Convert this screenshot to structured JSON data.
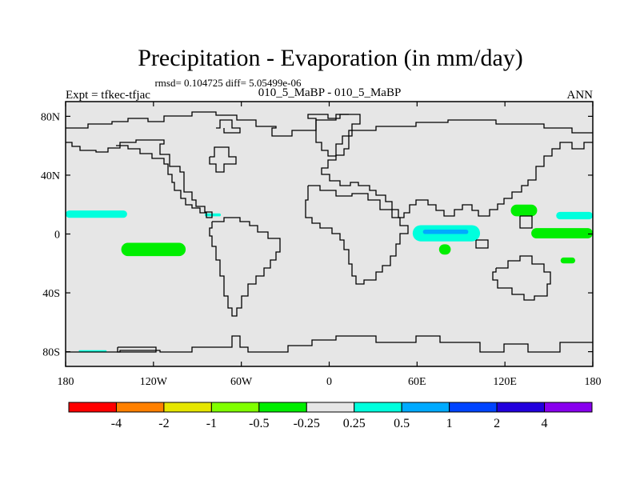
{
  "chart_data": {
    "type": "heatmap",
    "title": "Precipitation - Evaporation (in mm/day)",
    "stats_text": "rmsd= 0.104725 diff= 5.05499e-06",
    "left_label": "Expt = tfkec-tfjac",
    "center_label": "010_5_MaBP - 010_5_MaBP",
    "right_label": "ANN",
    "x_ticks": [
      {
        "value": -180,
        "label": "180"
      },
      {
        "value": -120,
        "label": "120W"
      },
      {
        "value": -60,
        "label": "60W"
      },
      {
        "value": 0,
        "label": "0"
      },
      {
        "value": 60,
        "label": "60E"
      },
      {
        "value": 120,
        "label": "120E"
      },
      {
        "value": 180,
        "label": "180"
      }
    ],
    "y_ticks": [
      {
        "value": 80,
        "label": "80N"
      },
      {
        "value": 40,
        "label": "40N"
      },
      {
        "value": 0,
        "label": "0"
      },
      {
        "value": -40,
        "label": "40S"
      },
      {
        "value": -80,
        "label": "80S"
      }
    ],
    "xlim": [
      -180,
      180
    ],
    "ylim": [
      -90,
      90
    ],
    "colorbar": {
      "levels": [
        "-4",
        "-2",
        "-1",
        "-0.5",
        "-0.25",
        "0.25",
        "0.5",
        "1",
        "2",
        "4"
      ],
      "colors": [
        "#ff0000",
        "#ff8000",
        "#e6e600",
        "#80ff00",
        "#00ee00",
        "#e6e6e6",
        "#00ffdd",
        "#00aaff",
        "#0044ff",
        "#2200dd",
        "#8800ee"
      ]
    },
    "regions": [
      {
        "label": "cyan band north Pacific",
        "color": "#00ffdd",
        "lon": [
          -180,
          -138
        ],
        "lat": [
          11,
          16
        ]
      },
      {
        "label": "green patch south-east Pacific",
        "color": "#00ee00",
        "lon": [
          -142,
          -98
        ],
        "lat": [
          -15,
          -6
        ]
      },
      {
        "label": "cyan patch Caribbean",
        "color": "#00ffdd",
        "lon": [
          -85,
          -74
        ],
        "lat": [
          12,
          14
        ]
      },
      {
        "label": "cyan band Indian Ocean",
        "color": "#00ffdd",
        "lon": [
          57,
          103
        ],
        "lat": [
          -5,
          6
        ]
      },
      {
        "label": "blue core Indian Ocean",
        "color": "#00aaff",
        "lon": [
          64,
          95
        ],
        "lat": [
          0,
          3
        ]
      },
      {
        "label": "green patch south Indian Ocean",
        "color": "#00ee00",
        "lon": [
          75,
          83
        ],
        "lat": [
          -14,
          -7
        ]
      },
      {
        "label": "green patch Indonesia",
        "color": "#00ee00",
        "lon": [
          124,
          142
        ],
        "lat": [
          12,
          20
        ]
      },
      {
        "label": "green band west Pacific",
        "color": "#00ee00",
        "lon": [
          138,
          180
        ],
        "lat": [
          -3,
          4
        ]
      },
      {
        "label": "cyan band north-west Pacific",
        "color": "#00ffdd",
        "lon": [
          155,
          180
        ],
        "lat": [
          10,
          15
        ]
      },
      {
        "label": "green patch Coral Sea",
        "color": "#00ee00",
        "lon": [
          158,
          168
        ],
        "lat": [
          -20,
          -16
        ]
      },
      {
        "label": "cyan patch Antarctic",
        "color": "#00ffdd",
        "lon": [
          -171,
          -152
        ],
        "lat": [
          -80,
          -79
        ]
      }
    ]
  },
  "icons": {
    "map_outline": "coastline-icon"
  }
}
